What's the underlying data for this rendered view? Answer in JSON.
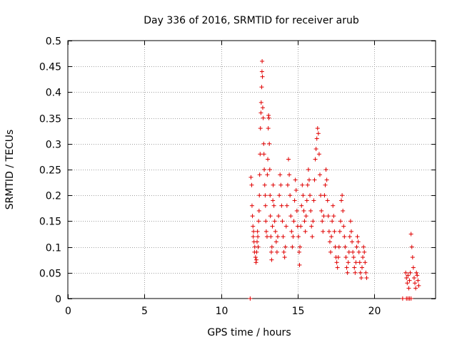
{
  "chart_data": {
    "type": "scatter",
    "title": "Day 336 of 2016, SRMTID for receiver arub",
    "xlabel": "GPS time / hours",
    "ylabel": "SRMTID / TECUs",
    "xlim": [
      0,
      24
    ],
    "ylim": [
      0,
      0.5
    ],
    "xticks": [
      "0",
      "5",
      "10",
      "15",
      "20"
    ],
    "xtick_values": [
      0,
      5,
      10,
      15,
      20
    ],
    "yticks": [
      "0",
      "0.05",
      "0.1",
      "0.15",
      "0.2",
      "0.25",
      "0.3",
      "0.35",
      "0.4",
      "0.45",
      "0.5"
    ],
    "ytick_values": [
      0,
      0.05,
      0.1,
      0.15,
      0.2,
      0.25,
      0.3,
      0.35,
      0.4,
      0.45,
      0.5
    ],
    "grid": true,
    "marker": "+",
    "color": "#e00000",
    "series": [
      {
        "name": "SRMTID",
        "points": [
          [
            11.9,
            0.0
          ],
          [
            11.95,
            0.235
          ],
          [
            12.0,
            0.22
          ],
          [
            12.02,
            0.18
          ],
          [
            12.05,
            0.16
          ],
          [
            12.08,
            0.14
          ],
          [
            12.1,
            0.12
          ],
          [
            12.12,
            0.13
          ],
          [
            12.15,
            0.11
          ],
          [
            12.18,
            0.09
          ],
          [
            12.2,
            0.1
          ],
          [
            12.25,
            0.08
          ],
          [
            12.28,
            0.07
          ],
          [
            12.3,
            0.075
          ],
          [
            12.32,
            0.09
          ],
          [
            12.35,
            0.11
          ],
          [
            12.38,
            0.13
          ],
          [
            12.4,
            0.12
          ],
          [
            12.42,
            0.1
          ],
          [
            12.45,
            0.15
          ],
          [
            12.48,
            0.17
          ],
          [
            12.5,
            0.2
          ],
          [
            12.52,
            0.24
          ],
          [
            12.55,
            0.28
          ],
          [
            12.57,
            0.33
          ],
          [
            12.6,
            0.36
          ],
          [
            12.62,
            0.38
          ],
          [
            12.65,
            0.41
          ],
          [
            12.67,
            0.44
          ],
          [
            12.68,
            0.46
          ],
          [
            12.7,
            0.43
          ],
          [
            12.72,
            0.37
          ],
          [
            12.75,
            0.35
          ],
          [
            12.78,
            0.3
          ],
          [
            12.8,
            0.28
          ],
          [
            12.82,
            0.25
          ],
          [
            12.85,
            0.22
          ],
          [
            12.88,
            0.2
          ],
          [
            12.9,
            0.18
          ],
          [
            12.92,
            0.15
          ],
          [
            12.95,
            0.13
          ],
          [
            13.0,
            0.12
          ],
          [
            13.02,
            0.24
          ],
          [
            13.05,
            0.27
          ],
          [
            13.08,
            0.33
          ],
          [
            13.1,
            0.355
          ],
          [
            13.12,
            0.35
          ],
          [
            13.15,
            0.3
          ],
          [
            13.18,
            0.25
          ],
          [
            13.2,
            0.2
          ],
          [
            13.22,
            0.16
          ],
          [
            13.25,
            0.12
          ],
          [
            13.28,
            0.09
          ],
          [
            13.3,
            0.075
          ],
          [
            13.32,
            0.1
          ],
          [
            13.35,
            0.14
          ],
          [
            13.38,
            0.19
          ],
          [
            13.4,
            0.22
          ],
          [
            13.45,
            0.18
          ],
          [
            13.5,
            0.15
          ],
          [
            13.55,
            0.13
          ],
          [
            13.6,
            0.11
          ],
          [
            13.65,
            0.09
          ],
          [
            13.7,
            0.12
          ],
          [
            13.75,
            0.16
          ],
          [
            13.8,
            0.2
          ],
          [
            13.85,
            0.24
          ],
          [
            13.9,
            0.22
          ],
          [
            13.95,
            0.18
          ],
          [
            14.0,
            0.15
          ],
          [
            14.05,
            0.12
          ],
          [
            14.1,
            0.09
          ],
          [
            14.15,
            0.08
          ],
          [
            14.2,
            0.1
          ],
          [
            14.25,
            0.14
          ],
          [
            14.3,
            0.18
          ],
          [
            14.35,
            0.22
          ],
          [
            14.4,
            0.27
          ],
          [
            14.45,
            0.24
          ],
          [
            14.5,
            0.2
          ],
          [
            14.55,
            0.16
          ],
          [
            14.6,
            0.13
          ],
          [
            14.65,
            0.1
          ],
          [
            14.7,
            0.12
          ],
          [
            14.75,
            0.15
          ],
          [
            14.8,
            0.19
          ],
          [
            14.85,
            0.23
          ],
          [
            14.9,
            0.21
          ],
          [
            14.95,
            0.17
          ],
          [
            15.0,
            0.14
          ],
          [
            15.05,
            0.12
          ],
          [
            15.1,
            0.09
          ],
          [
            15.12,
            0.065
          ],
          [
            15.15,
            0.1
          ],
          [
            15.2,
            0.14
          ],
          [
            15.25,
            0.18
          ],
          [
            15.3,
            0.22
          ],
          [
            15.35,
            0.2
          ],
          [
            15.4,
            0.17
          ],
          [
            15.45,
            0.15
          ],
          [
            15.5,
            0.13
          ],
          [
            15.55,
            0.16
          ],
          [
            15.6,
            0.19
          ],
          [
            15.65,
            0.22
          ],
          [
            15.7,
            0.25
          ],
          [
            15.75,
            0.23
          ],
          [
            15.8,
            0.2
          ],
          [
            15.85,
            0.17
          ],
          [
            15.9,
            0.14
          ],
          [
            15.95,
            0.12
          ],
          [
            16.0,
            0.15
          ],
          [
            16.05,
            0.19
          ],
          [
            16.1,
            0.23
          ],
          [
            16.15,
            0.27
          ],
          [
            16.2,
            0.29
          ],
          [
            16.25,
            0.31
          ],
          [
            16.3,
            0.33
          ],
          [
            16.35,
            0.32
          ],
          [
            16.4,
            0.28
          ],
          [
            16.45,
            0.24
          ],
          [
            16.5,
            0.2
          ],
          [
            16.55,
            0.17
          ],
          [
            16.6,
            0.15
          ],
          [
            16.65,
            0.13
          ],
          [
            16.7,
            0.16
          ],
          [
            16.75,
            0.2
          ],
          [
            16.8,
            0.22
          ],
          [
            16.85,
            0.25
          ],
          [
            16.9,
            0.23
          ],
          [
            16.95,
            0.19
          ],
          [
            17.0,
            0.16
          ],
          [
            17.05,
            0.13
          ],
          [
            17.1,
            0.11
          ],
          [
            17.15,
            0.09
          ],
          [
            17.2,
            0.12
          ],
          [
            17.25,
            0.15
          ],
          [
            17.3,
            0.18
          ],
          [
            17.35,
            0.16
          ],
          [
            17.4,
            0.13
          ],
          [
            17.45,
            0.1
          ],
          [
            17.5,
            0.08
          ],
          [
            17.55,
            0.07
          ],
          [
            17.6,
            0.06
          ],
          [
            17.65,
            0.08
          ],
          [
            17.7,
            0.1
          ],
          [
            17.75,
            0.13
          ],
          [
            17.8,
            0.15
          ],
          [
            17.85,
            0.19
          ],
          [
            17.9,
            0.2
          ],
          [
            17.95,
            0.17
          ],
          [
            18.0,
            0.14
          ],
          [
            18.05,
            0.12
          ],
          [
            18.1,
            0.1
          ],
          [
            18.15,
            0.08
          ],
          [
            18.2,
            0.06
          ],
          [
            18.25,
            0.05
          ],
          [
            18.3,
            0.07
          ],
          [
            18.35,
            0.09
          ],
          [
            18.4,
            0.12
          ],
          [
            18.45,
            0.15
          ],
          [
            18.5,
            0.13
          ],
          [
            18.55,
            0.11
          ],
          [
            18.6,
            0.09
          ],
          [
            18.65,
            0.08
          ],
          [
            18.7,
            0.06
          ],
          [
            18.75,
            0.05
          ],
          [
            18.8,
            0.07
          ],
          [
            18.85,
            0.1
          ],
          [
            18.9,
            0.12
          ],
          [
            18.95,
            0.11
          ],
          [
            19.0,
            0.09
          ],
          [
            19.05,
            0.07
          ],
          [
            19.1,
            0.05
          ],
          [
            19.15,
            0.04
          ],
          [
            19.2,
            0.06
          ],
          [
            19.25,
            0.08
          ],
          [
            19.3,
            0.1
          ],
          [
            19.35,
            0.09
          ],
          [
            19.4,
            0.07
          ],
          [
            19.45,
            0.05
          ],
          [
            19.5,
            0.04
          ],
          [
            21.85,
            0.0
          ],
          [
            22.1,
            0.0
          ],
          [
            22.2,
            0.0
          ],
          [
            22.3,
            0.0
          ],
          [
            22.4,
            0.0
          ],
          [
            22.05,
            0.05
          ],
          [
            22.1,
            0.04
          ],
          [
            22.15,
            0.03
          ],
          [
            22.2,
            0.045
          ],
          [
            22.25,
            0.02
          ],
          [
            22.3,
            0.035
          ],
          [
            22.35,
            0.05
          ],
          [
            22.4,
            0.125
          ],
          [
            22.45,
            0.1
          ],
          [
            22.5,
            0.08
          ],
          [
            22.55,
            0.06
          ],
          [
            22.6,
            0.04
          ],
          [
            22.65,
            0.03
          ],
          [
            22.7,
            0.02
          ],
          [
            22.75,
            0.05
          ],
          [
            22.8,
            0.045
          ],
          [
            22.85,
            0.035
          ],
          [
            22.9,
            0.025
          ]
        ]
      }
    ]
  }
}
